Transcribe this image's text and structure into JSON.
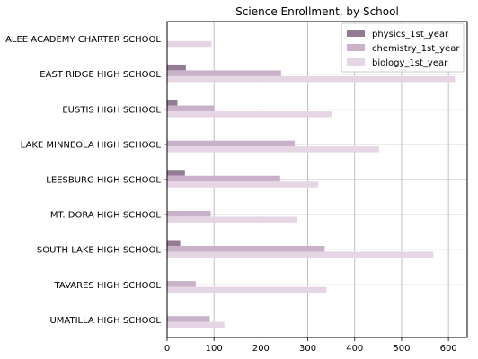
{
  "chart_data": {
    "type": "bar",
    "orientation": "horizontal",
    "title": "Science Enrollment, by School",
    "xlabel": "",
    "ylabel": "",
    "xlim": [
      0,
      640
    ],
    "xticks": [
      0,
      100,
      200,
      300,
      400,
      500,
      600
    ],
    "grid": true,
    "legend_position": "top-right",
    "categories": [
      "ALEE ACADEMY CHARTER SCHOOL",
      "EAST RIDGE HIGH SCHOOL",
      "EUSTIS HIGH SCHOOL",
      "LAKE MINNEOLA HIGH SCHOOL",
      "LEESBURG HIGH SCHOOL",
      "MT. DORA HIGH SCHOOL",
      "SOUTH LAKE HIGH SCHOOL",
      "TAVARES HIGH SCHOOL",
      "UMATILLA HIGH SCHOOL"
    ],
    "series": [
      {
        "name": "physics_1st_year",
        "color": "#947b95",
        "values": [
          0,
          40,
          22,
          0,
          38,
          0,
          28,
          0,
          0
        ]
      },
      {
        "name": "chemistry_1st_year",
        "color": "#c8b1c9",
        "values": [
          0,
          243,
          101,
          272,
          241,
          93,
          336,
          61,
          91
        ]
      },
      {
        "name": "biology_1st_year",
        "color": "#e6d6e5",
        "values": [
          95,
          614,
          352,
          452,
          322,
          278,
          568,
          340,
          122
        ]
      }
    ]
  }
}
